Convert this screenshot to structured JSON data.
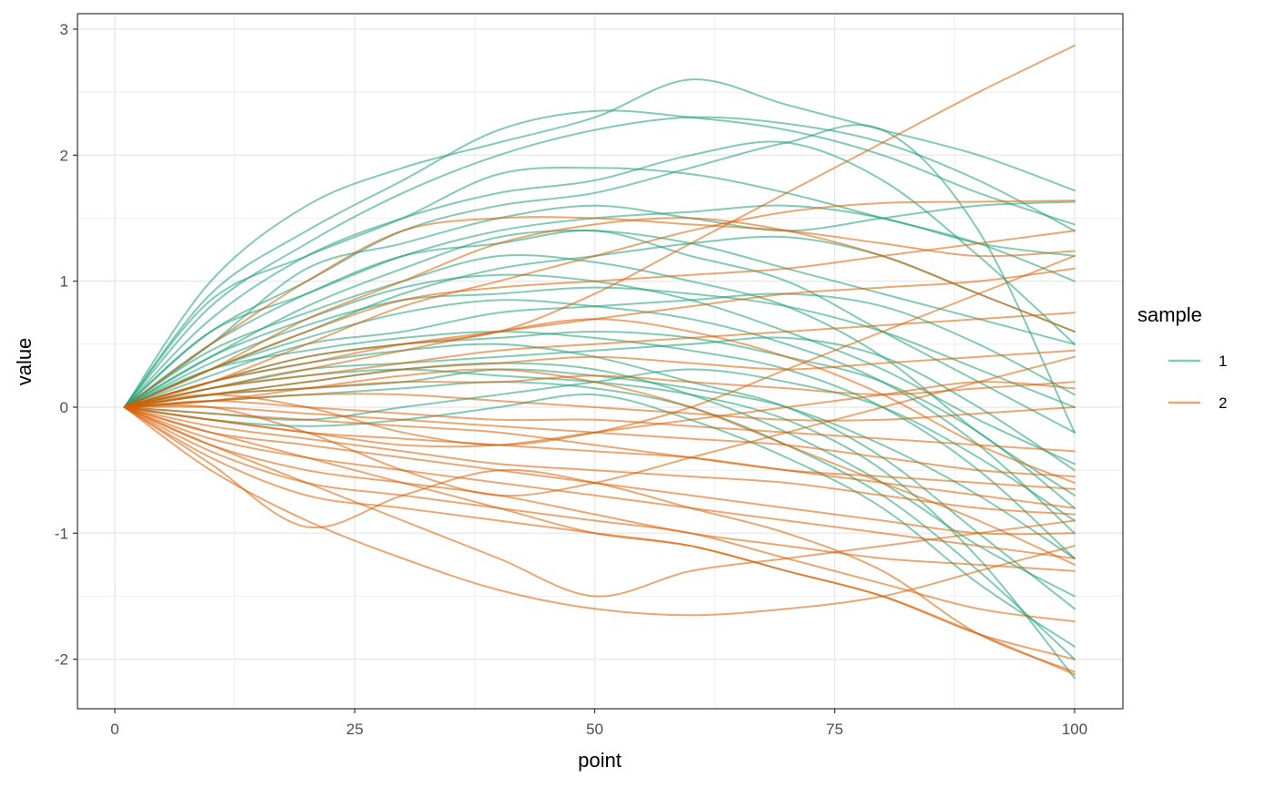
{
  "chart_data": {
    "type": "line",
    "xlabel": "point",
    "ylabel": "value",
    "xlim": [
      0,
      100
    ],
    "ylim": [
      -2.2,
      3
    ],
    "x_ticks": [
      0,
      25,
      50,
      75,
      100
    ],
    "y_ticks": [
      -2,
      -1,
      0,
      1,
      2,
      3
    ],
    "x_tick_labels": [
      "0",
      "25",
      "50",
      "75",
      "100"
    ],
    "y_tick_labels": [
      "-2",
      "-1",
      "0",
      "1",
      "2",
      "3"
    ],
    "grid": true,
    "legend": {
      "title": "sample",
      "placement": "right",
      "labels": [
        "1",
        "2"
      ]
    },
    "colors": {
      "1": "#1b9e77",
      "2": "#d95f02"
    },
    "x": [
      1,
      10,
      20,
      30,
      40,
      50,
      60,
      70,
      80,
      90,
      100
    ],
    "series": [
      {
        "name": "1",
        "values": [
          0,
          1.0,
          1.6,
          1.9,
          2.1,
          2.3,
          2.6,
          2.4,
          2.2,
          2.0,
          1.72
        ]
      },
      {
        "name": "1",
        "values": [
          0,
          0.9,
          1.4,
          1.8,
          2.2,
          2.35,
          2.3,
          2.2,
          2.0,
          1.7,
          1.45
        ]
      },
      {
        "name": "1",
        "values": [
          0,
          0.8,
          1.3,
          1.7,
          2.0,
          2.2,
          2.3,
          2.25,
          2.1,
          1.8,
          1.4
        ]
      },
      {
        "name": "1",
        "values": [
          0,
          0.85,
          1.2,
          1.5,
          1.85,
          1.9,
          1.85,
          1.7,
          1.5,
          1.3,
          1.0
        ]
      },
      {
        "name": "1",
        "values": [
          0,
          0.7,
          1.2,
          1.5,
          1.7,
          1.8,
          2.0,
          2.1,
          1.8,
          1.2,
          0.5
        ]
      },
      {
        "name": "1",
        "values": [
          0,
          0.6,
          1.0,
          1.4,
          1.6,
          1.7,
          1.9,
          2.1,
          2.2,
          1.4,
          -0.2
        ]
      },
      {
        "name": "1",
        "values": [
          0,
          0.5,
          1.1,
          1.3,
          1.5,
          1.6,
          1.5,
          1.4,
          1.5,
          1.6,
          1.63
        ]
      },
      {
        "name": "1",
        "values": [
          0,
          0.6,
          0.9,
          1.2,
          1.4,
          1.5,
          1.55,
          1.6,
          1.5,
          1.3,
          1.2
        ]
      },
      {
        "name": "1",
        "values": [
          0,
          0.4,
          0.8,
          1.1,
          1.35,
          1.4,
          1.3,
          1.1,
          0.9,
          0.7,
          0.5
        ]
      },
      {
        "name": "1",
        "values": [
          0,
          0.5,
          0.9,
          1.2,
          1.3,
          1.4,
          1.2,
          1.0,
          0.6,
          0.2,
          -0.2
        ]
      },
      {
        "name": "1",
        "values": [
          0,
          0.3,
          0.6,
          0.9,
          1.1,
          1.2,
          1.3,
          1.35,
          1.2,
          0.9,
          0.6
        ]
      },
      {
        "name": "1",
        "values": [
          0,
          0.45,
          0.75,
          1.0,
          1.2,
          1.15,
          1.0,
          0.8,
          0.4,
          -0.2,
          -0.7
        ]
      },
      {
        "name": "1",
        "values": [
          0,
          0.4,
          0.7,
          0.95,
          1.05,
          1.0,
          0.85,
          0.6,
          0.3,
          -0.1,
          -0.45
        ]
      },
      {
        "name": "1",
        "values": [
          0,
          0.35,
          0.65,
          0.85,
          0.9,
          0.95,
          0.9,
          0.8,
          0.6,
          0.3,
          0.0
        ]
      },
      {
        "name": "1",
        "values": [
          0,
          0.3,
          0.55,
          0.75,
          0.85,
          0.8,
          0.7,
          0.5,
          0.2,
          -0.3,
          -1.0
        ]
      },
      {
        "name": "1",
        "values": [
          0,
          0.25,
          0.5,
          0.6,
          0.75,
          0.8,
          0.85,
          0.9,
          0.8,
          0.5,
          0.1
        ]
      },
      {
        "name": "1",
        "values": [
          0,
          0.3,
          0.45,
          0.55,
          0.6,
          0.55,
          0.45,
          0.3,
          0.0,
          -0.5,
          -1.2
        ]
      },
      {
        "name": "1",
        "values": [
          0,
          0.2,
          0.4,
          0.5,
          0.55,
          0.6,
          0.55,
          0.4,
          0.2,
          -0.2,
          -0.8
        ]
      },
      {
        "name": "1",
        "values": [
          0,
          0.2,
          0.35,
          0.45,
          0.5,
          0.4,
          0.2,
          0.0,
          -0.4,
          -1.0,
          -1.6
        ]
      },
      {
        "name": "1",
        "values": [
          0,
          0.15,
          0.3,
          0.35,
          0.4,
          0.45,
          0.5,
          0.55,
          0.4,
          0.0,
          -0.5
        ]
      },
      {
        "name": "1",
        "values": [
          0,
          0.15,
          0.25,
          0.3,
          0.25,
          0.2,
          0.1,
          -0.1,
          -0.5,
          -1.2,
          -2.15
        ]
      },
      {
        "name": "1",
        "values": [
          0,
          0.1,
          0.2,
          0.3,
          0.35,
          0.3,
          0.1,
          -0.2,
          -0.6,
          -1.1,
          -1.5
        ]
      },
      {
        "name": "1",
        "values": [
          0,
          0.1,
          0.15,
          0.2,
          0.3,
          0.25,
          0.15,
          0.0,
          -0.3,
          -0.7,
          -1.2
        ]
      },
      {
        "name": "1",
        "values": [
          0,
          0.05,
          0.1,
          0.15,
          0.2,
          0.15,
          0.0,
          -0.3,
          -0.7,
          -1.3,
          -2.0
        ]
      },
      {
        "name": "1",
        "values": [
          0,
          -0.05,
          -0.1,
          0.0,
          0.1,
          0.2,
          0.3,
          0.2,
          0.0,
          -0.4,
          -0.9
        ]
      },
      {
        "name": "1",
        "values": [
          0,
          -0.1,
          -0.15,
          -0.1,
          0.0,
          0.1,
          -0.1,
          -0.4,
          -0.8,
          -1.4,
          -1.9
        ]
      },
      {
        "name": "2",
        "values": [
          0,
          0.5,
          1.0,
          1.4,
          1.5,
          1.5,
          1.45,
          1.4,
          1.3,
          1.2,
          1.24
        ]
      },
      {
        "name": "2",
        "values": [
          0,
          0.3,
          0.7,
          1.0,
          1.3,
          1.45,
          1.5,
          1.4,
          1.2,
          0.9,
          0.6
        ]
      },
      {
        "name": "2",
        "values": [
          0,
          0.2,
          0.5,
          0.8,
          1.0,
          1.2,
          1.4,
          1.55,
          1.62,
          1.63,
          1.64
        ]
      },
      {
        "name": "2",
        "values": [
          0,
          0.3,
          0.6,
          0.85,
          0.95,
          1.0,
          1.05,
          1.1,
          1.2,
          1.3,
          1.4
        ]
      },
      {
        "name": "2",
        "values": [
          0,
          0.2,
          0.4,
          0.5,
          0.6,
          0.9,
          1.3,
          1.7,
          2.1,
          2.5,
          2.87
        ]
      },
      {
        "name": "2",
        "values": [
          0,
          0.2,
          0.35,
          0.5,
          0.6,
          0.7,
          0.8,
          0.9,
          0.95,
          1.0,
          1.1
        ]
      },
      {
        "name": "2",
        "values": [
          0,
          0.15,
          0.25,
          0.35,
          0.45,
          0.5,
          0.55,
          0.6,
          0.65,
          0.7,
          0.75
        ]
      },
      {
        "name": "2",
        "values": [
          0,
          0.1,
          0.2,
          0.3,
          0.35,
          0.4,
          0.35,
          0.3,
          0.35,
          0.4,
          0.45
        ]
      },
      {
        "name": "2",
        "values": [
          0,
          0.1,
          0.15,
          0.2,
          0.2,
          0.25,
          0.2,
          0.15,
          0.1,
          0.15,
          0.2
        ]
      },
      {
        "name": "2",
        "values": [
          0,
          0.05,
          0.1,
          0.1,
          0.05,
          0.0,
          -0.05,
          -0.1,
          -0.1,
          -0.05,
          0.0
        ]
      },
      {
        "name": "2",
        "values": [
          0,
          0.05,
          0.0,
          -0.05,
          -0.1,
          -0.1,
          -0.15,
          -0.2,
          -0.25,
          -0.3,
          -0.35
        ]
      },
      {
        "name": "2",
        "values": [
          0,
          0.0,
          -0.05,
          -0.1,
          -0.15,
          -0.2,
          -0.25,
          -0.3,
          -0.4,
          -0.5,
          -0.55
        ]
      },
      {
        "name": "2",
        "values": [
          0,
          -0.05,
          -0.1,
          -0.15,
          -0.2,
          -0.3,
          -0.4,
          -0.5,
          -0.55,
          -0.6,
          -0.65
        ]
      },
      {
        "name": "2",
        "values": [
          0,
          -0.1,
          -0.2,
          -0.25,
          -0.3,
          -0.35,
          -0.4,
          -0.5,
          -0.6,
          -0.7,
          -0.8
        ]
      },
      {
        "name": "2",
        "values": [
          0,
          -0.15,
          -0.25,
          -0.35,
          -0.45,
          -0.5,
          -0.55,
          -0.6,
          -0.7,
          -0.8,
          -0.85
        ]
      },
      {
        "name": "2",
        "values": [
          0,
          -0.2,
          -0.3,
          -0.4,
          -0.5,
          -0.6,
          -0.7,
          -0.8,
          -0.9,
          -1.0,
          -1.0
        ]
      },
      {
        "name": "2",
        "values": [
          0,
          -0.25,
          -0.4,
          -0.5,
          -0.6,
          -0.7,
          -0.8,
          -0.9,
          -1.0,
          -1.1,
          -1.2
        ]
      },
      {
        "name": "2",
        "values": [
          0,
          -0.3,
          -0.5,
          -0.6,
          -0.7,
          -0.85,
          -1.0,
          -1.1,
          -1.2,
          -1.25,
          -1.3
        ]
      },
      {
        "name": "2",
        "values": [
          0,
          -0.35,
          -0.6,
          -0.7,
          -0.8,
          -0.9,
          -1.0,
          -1.2,
          -1.4,
          -1.6,
          -1.7
        ]
      },
      {
        "name": "2",
        "values": [
          0,
          -0.4,
          -0.7,
          -0.8,
          -0.9,
          -1.0,
          -1.1,
          -1.3,
          -1.5,
          -1.8,
          -2.0
        ]
      },
      {
        "name": "2",
        "values": [
          0,
          -0.5,
          -0.9,
          -1.2,
          -1.45,
          -1.6,
          -1.65,
          -1.6,
          -1.5,
          -1.3,
          -1.1
        ]
      },
      {
        "name": "2",
        "values": [
          0,
          -0.45,
          -0.95,
          -0.7,
          -0.5,
          -0.6,
          -0.8,
          -1.0,
          -1.3,
          -1.8,
          -2.1
        ]
      },
      {
        "name": "2",
        "values": [
          0,
          -0.3,
          -0.6,
          -0.9,
          -1.2,
          -1.5,
          -1.3,
          -1.2,
          -1.1,
          -1.0,
          -0.9
        ]
      },
      {
        "name": "2",
        "values": [
          0,
          -0.2,
          -0.4,
          -0.6,
          -0.8,
          -1.0,
          -1.1,
          -1.3,
          -1.5,
          -1.8,
          -2.12
        ]
      },
      {
        "name": "2",
        "values": [
          0,
          0.0,
          -0.2,
          -0.5,
          -0.7,
          -0.6,
          -0.4,
          -0.2,
          0.0,
          0.2,
          0.4
        ]
      },
      {
        "name": "2",
        "values": [
          0,
          0.1,
          0.0,
          -0.2,
          -0.3,
          -0.2,
          0.0,
          0.3,
          0.6,
          0.9,
          1.2
        ]
      },
      {
        "name": "2",
        "values": [
          0,
          0.15,
          0.3,
          0.45,
          0.6,
          0.7,
          0.6,
          0.4,
          0.1,
          -0.3,
          -0.6
        ]
      },
      {
        "name": "2",
        "values": [
          0,
          -0.1,
          -0.2,
          -0.3,
          -0.3,
          -0.2,
          -0.1,
          0.0,
          0.1,
          0.2,
          0.15
        ]
      },
      {
        "name": "2",
        "values": [
          0,
          0.05,
          0.15,
          0.25,
          0.3,
          0.2,
          0.0,
          -0.3,
          -0.6,
          -0.9,
          -1.25
        ]
      }
    ]
  }
}
